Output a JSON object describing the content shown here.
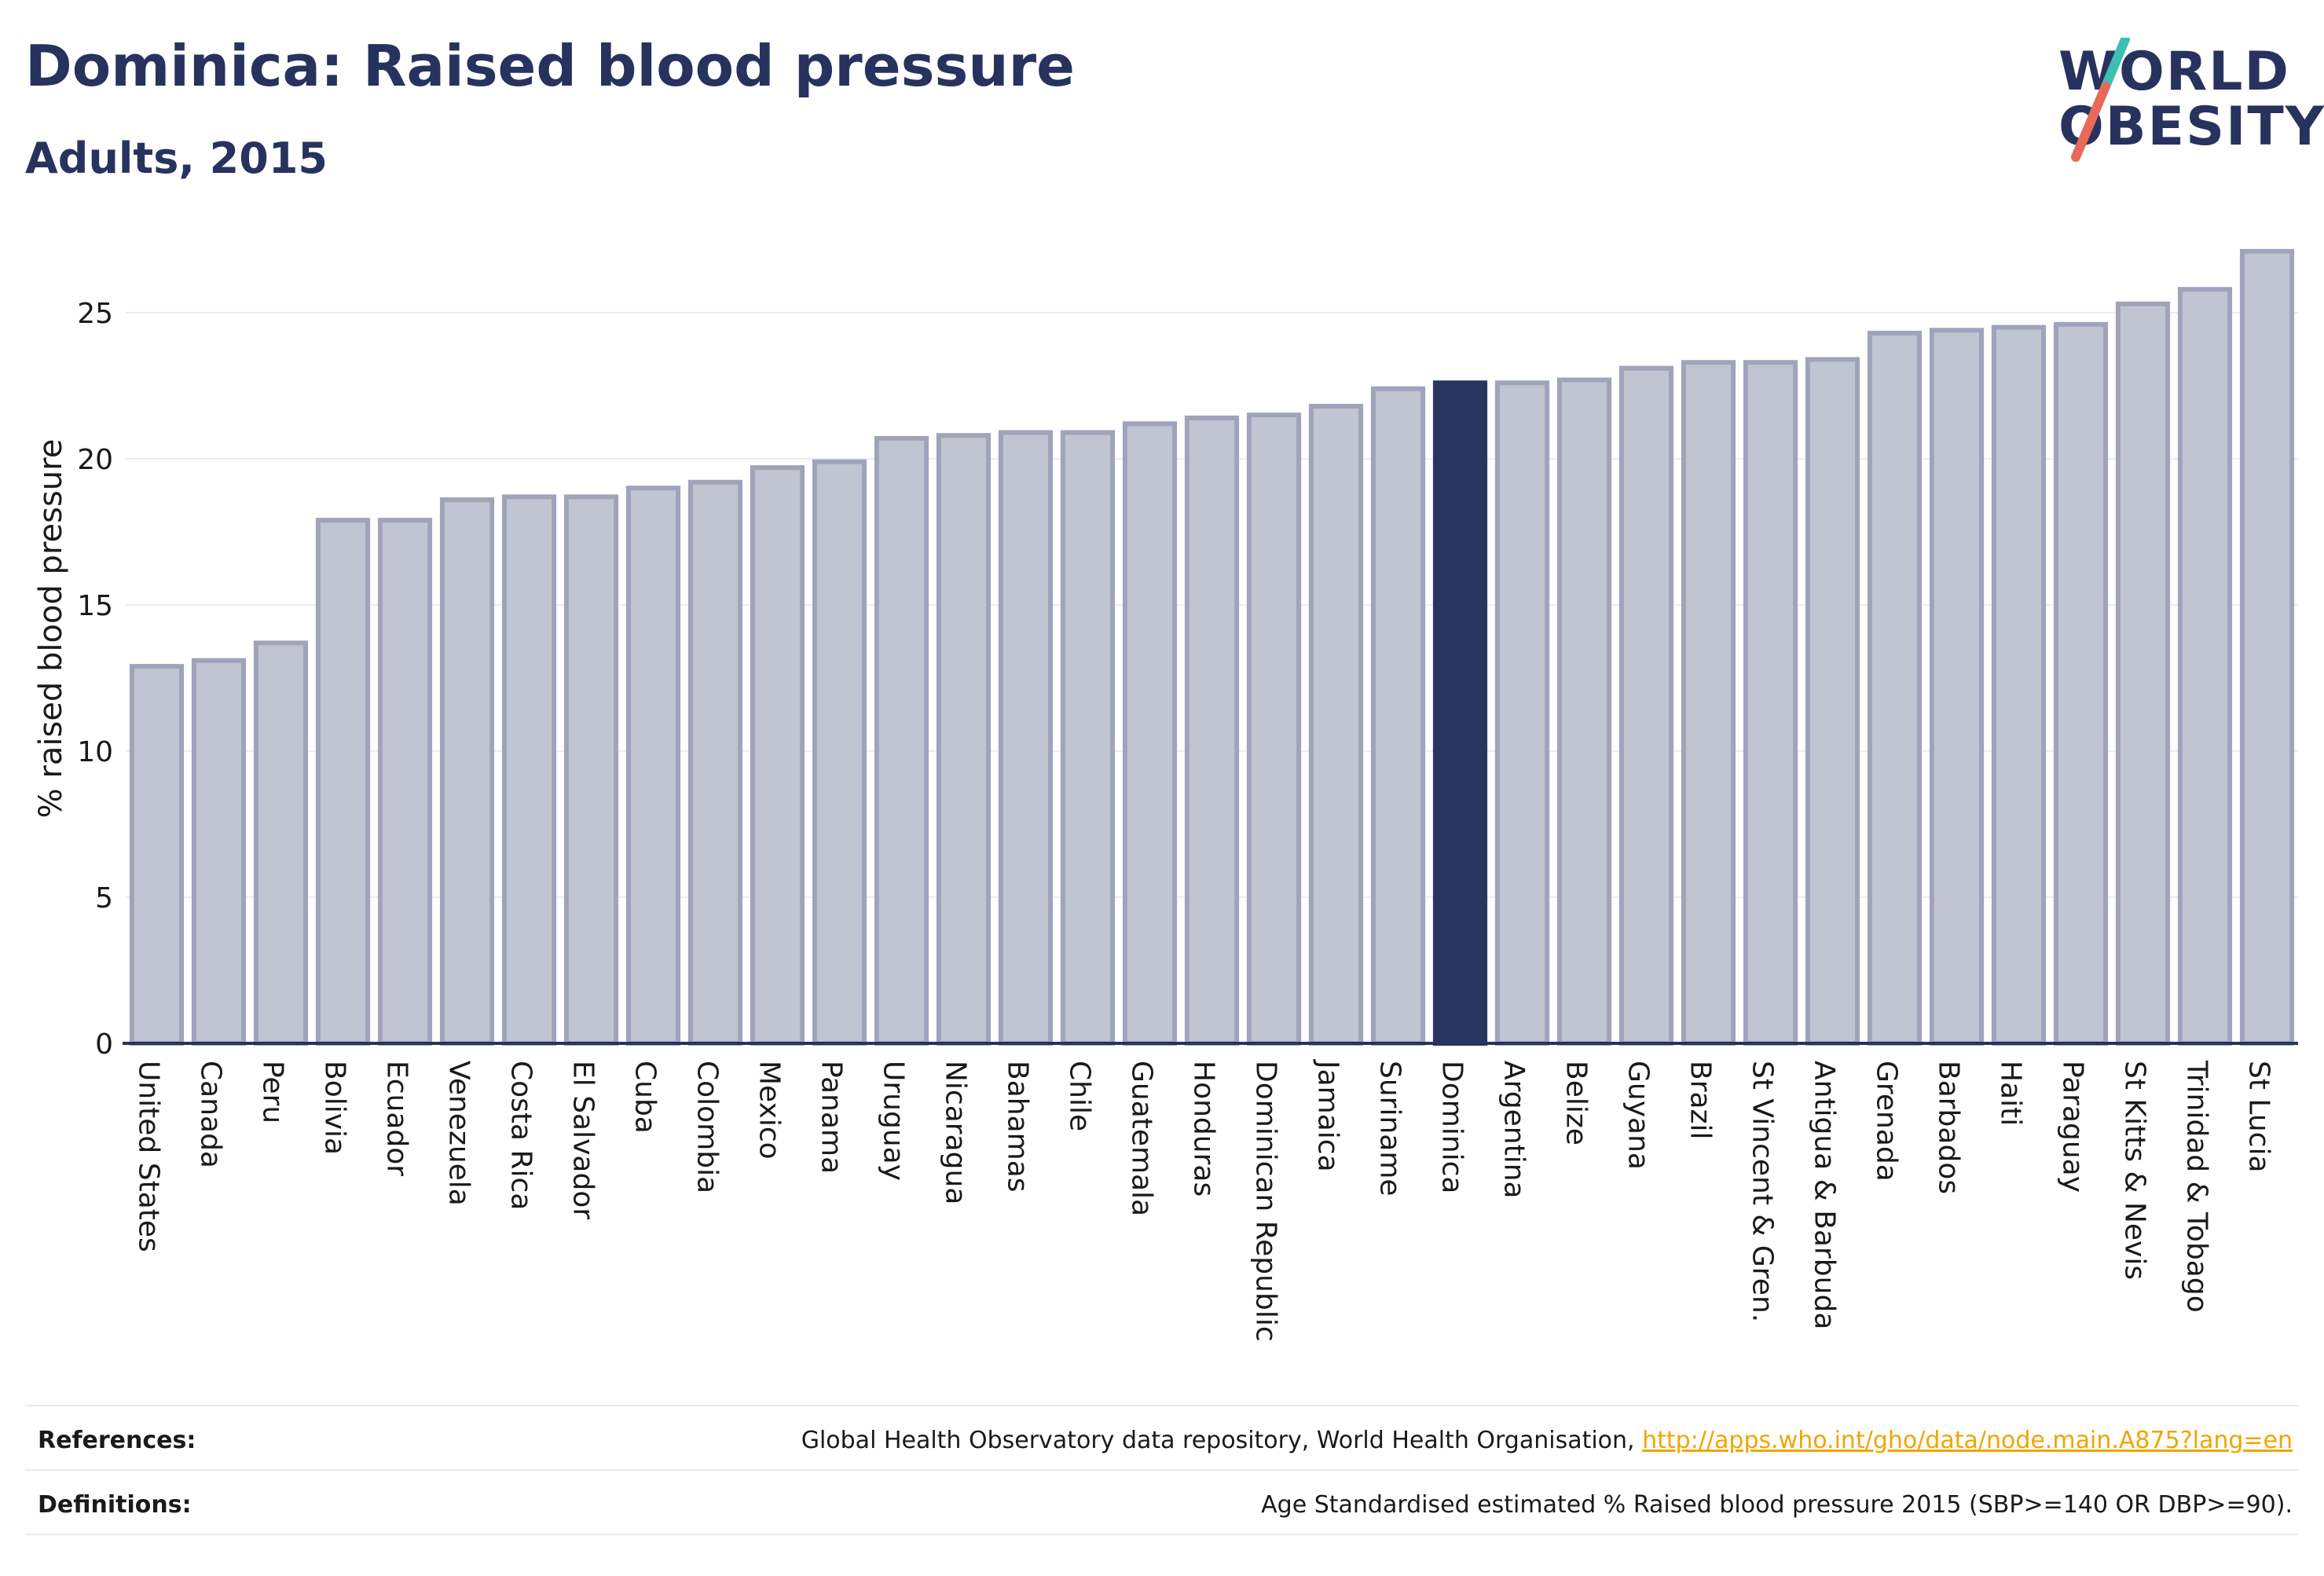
{
  "header": {
    "title": "Dominica: Raised blood pressure",
    "subtitle": "Adults, 2015"
  },
  "logo": {
    "line1": "WORLD",
    "line2": "OBESITY"
  },
  "chart_data": {
    "type": "bar",
    "ylabel": "% raised blood pressure",
    "ylim": [
      0,
      27.5
    ],
    "yticks": [
      0,
      5,
      10,
      15,
      20,
      25
    ],
    "grid": true,
    "highlight": "Dominica",
    "categories": [
      "United States",
      "Canada",
      "Peru",
      "Bolivia",
      "Ecuador",
      "Venezuela",
      "Costa Rica",
      "El Salvador",
      "Cuba",
      "Colombia",
      "Mexico",
      "Panama",
      "Uruguay",
      "Nicaragua",
      "Bahamas",
      "Chile",
      "Guatemala",
      "Honduras",
      "Dominican Republic",
      "Jamaica",
      "Suriname",
      "Dominica",
      "Argentina",
      "Belize",
      "Guyana",
      "Brazil",
      "St Vincent & Gren.",
      "Antigua & Barbuda",
      "Grenada",
      "Barbados",
      "Haiti",
      "Paraguay",
      "St Kitts & Nevis",
      "Trinidad & Tobago",
      "St Lucia"
    ],
    "values": [
      12.9,
      13.1,
      13.7,
      17.9,
      17.9,
      18.6,
      18.7,
      18.7,
      19.0,
      19.2,
      19.7,
      19.9,
      20.7,
      20.8,
      20.9,
      20.9,
      21.2,
      21.4,
      21.5,
      21.8,
      22.4,
      22.6,
      22.6,
      22.7,
      23.1,
      23.3,
      23.3,
      23.4,
      24.3,
      24.4,
      24.5,
      24.6,
      25.3,
      25.8,
      27.1
    ],
    "colors": {
      "bar": "#c1c4d1",
      "bar_border": "#9fa4bb",
      "highlight": "#29345f",
      "axis": "#27335e",
      "grid": "#ebedf2"
    }
  },
  "footer": {
    "references_label": "References:",
    "references_text": "Global Health Observatory data repository, World Health Organisation,",
    "references_link": "http://apps.who.int/gho/data/node.main.A875?lang=en",
    "definitions_label": "Definitions:",
    "definitions_text": "Age Standardised estimated % Raised blood pressure 2015 (SBP>=140 OR DBP>=90)."
  }
}
